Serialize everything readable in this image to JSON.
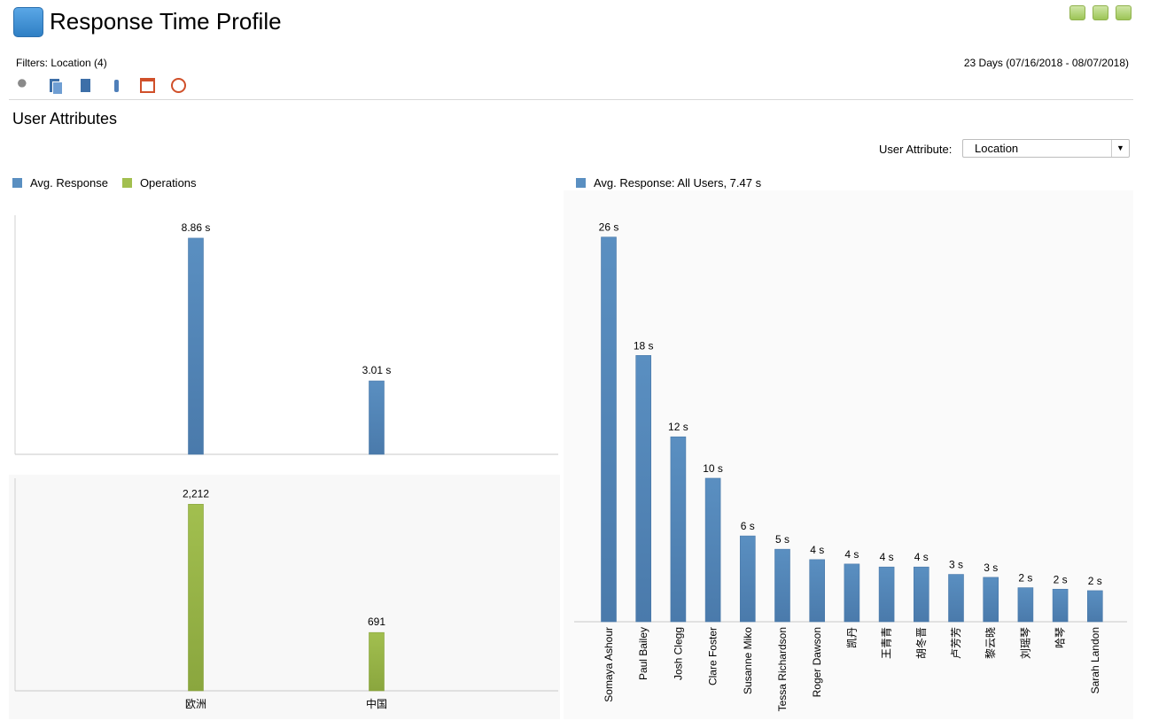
{
  "header": {
    "title": "Response Time Profile",
    "home_icon": "home-icon",
    "top_icons": [
      "filter-icon",
      "filter-check-icon",
      "filter-settings-icon"
    ]
  },
  "filters_text": "Filters: Location (4)",
  "date_range": "23 Days (07/16/2018 - 08/07/2018)",
  "toolbar": [
    "users-icon",
    "documents-icon",
    "document-icon",
    "pointer-icon",
    "calendar-icon",
    "clock-icon"
  ],
  "section_title": "User Attributes",
  "user_attribute": {
    "label": "User Attribute:",
    "value": "Location"
  },
  "colors": {
    "blue": "#5a8fc1",
    "green": "#a2bf4f"
  },
  "left_legend": [
    {
      "label": "Avg. Response",
      "color": "#5a8fc1"
    },
    {
      "label": "Operations",
      "color": "#a2bf4f"
    }
  ],
  "right_legend": [
    {
      "label": "Avg. Response: All Users, 7.47 s",
      "color": "#5a8fc1"
    }
  ],
  "chart_data": [
    {
      "type": "bar",
      "categories": [
        "欧洲",
        "中国"
      ],
      "series": [
        {
          "name": "Avg. Response",
          "values": [
            8.86,
            3.01
          ]
        }
      ],
      "value_labels": [
        "8.86 s",
        "3.01 s"
      ],
      "ylim": [
        0,
        9.8
      ]
    },
    {
      "type": "bar",
      "categories": [
        "欧洲",
        "中国"
      ],
      "series": [
        {
          "name": "Operations",
          "values": [
            2212,
            691
          ]
        }
      ],
      "value_labels": [
        "2,212",
        "691"
      ],
      "ylim": [
        0,
        2520
      ]
    },
    {
      "type": "bar",
      "categories": [
        "Somaya Ashour",
        "Paul Bailey",
        "Josh Clegg",
        "Clare Foster",
        "Susanne Miko",
        "Tessa Richardson",
        "Roger Dawson",
        "凯丹",
        "王青青",
        "胡冬晋",
        "卢芳芳",
        "黎云晓",
        "刘瑶琴",
        "哈琴",
        "Sarah Landon"
      ],
      "series": [
        {
          "name": "Avg. Response",
          "values": [
            26,
            18,
            12.5,
            9.7,
            5.8,
            4.9,
            4.2,
            3.9,
            3.7,
            3.7,
            3.2,
            3.0,
            2.3,
            2.2,
            2.1
          ]
        }
      ],
      "value_labels": [
        "26 s",
        "18 s",
        "12 s",
        "10 s",
        "6 s",
        "5 s",
        "4 s",
        "4 s",
        "4 s",
        "4 s",
        "3 s",
        "3 s",
        "2 s",
        "2 s",
        "2 s"
      ],
      "ylim": [
        0,
        27
      ]
    }
  ]
}
